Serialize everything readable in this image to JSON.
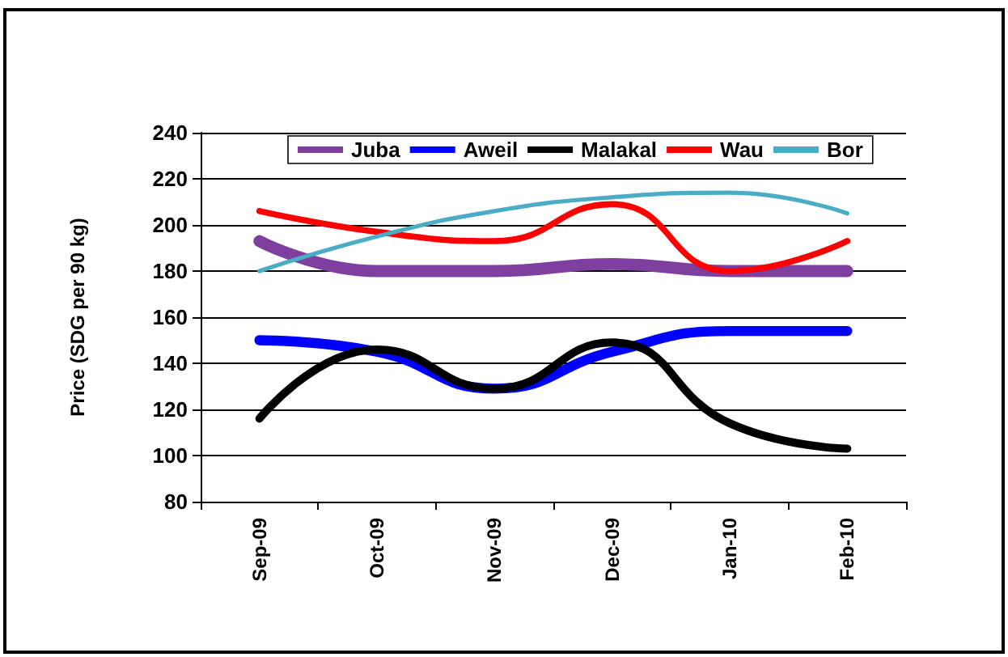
{
  "chart_data": {
    "type": "line",
    "ylabel": "Price (SDG per 90 kg)",
    "categories": [
      "Sep-09",
      "Oct-09",
      "Nov-09",
      "Dec-09",
      "Jan-10",
      "Feb-10"
    ],
    "series": [
      {
        "name": "Juba",
        "color": "#7f3f9f",
        "values": [
          193,
          180,
          180,
          183,
          180,
          180
        ]
      },
      {
        "name": "Aweil",
        "color": "#0000ff",
        "values": [
          150,
          145,
          129,
          145,
          154,
          154
        ]
      },
      {
        "name": "Malakal",
        "color": "#000000",
        "values": [
          116,
          146,
          129,
          149,
          114,
          103
        ]
      },
      {
        "name": "Wau",
        "color": "#ff0000",
        "values": [
          206,
          197,
          193,
          209,
          180,
          193
        ]
      },
      {
        "name": "Bor",
        "color": "#4bacc6",
        "values": [
          180,
          195,
          206,
          212,
          214,
          205
        ]
      }
    ],
    "ylim": [
      80,
      240
    ],
    "yticks": [
      80,
      100,
      120,
      140,
      160,
      180,
      200,
      220,
      240
    ],
    "grid": "y",
    "legend": "top",
    "marker": "none",
    "line_style": "solid"
  }
}
